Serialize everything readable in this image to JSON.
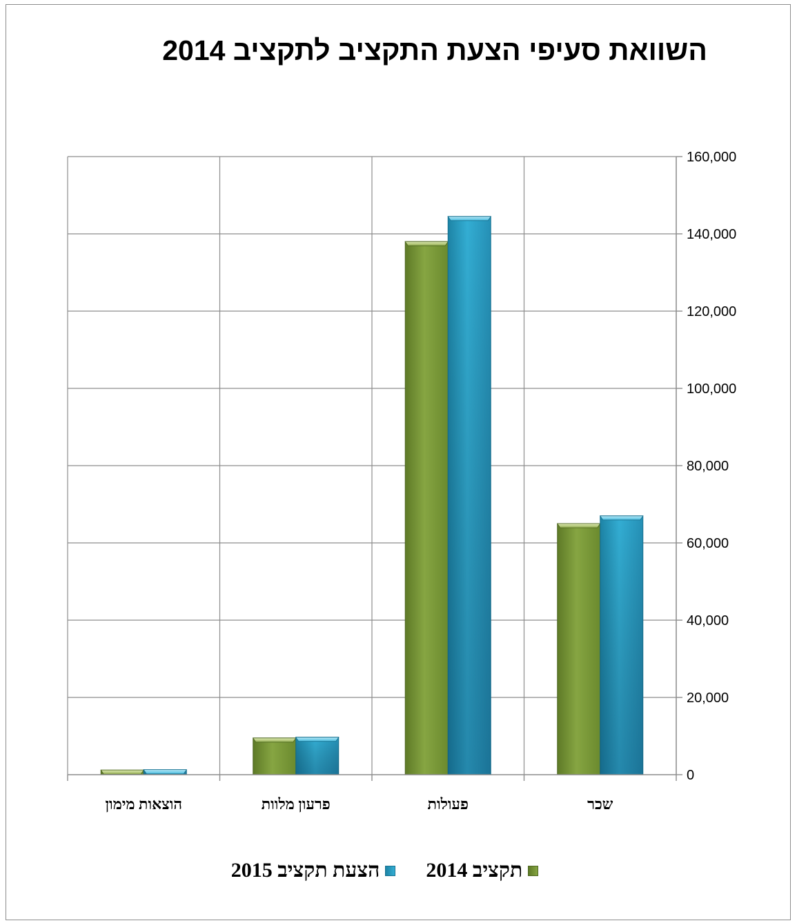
{
  "chart_data": {
    "type": "bar",
    "title": "השוואת סעיפי הצעת התקציב לתקציב 2014",
    "categories": [
      "שכר",
      "פעולות",
      "פרעון מלוות",
      "הוצאות מימון"
    ],
    "series": [
      {
        "name": "תקציב 2014",
        "values": [
          65000,
          138000,
          9500,
          1200
        ],
        "color": "#7a9a3a"
      },
      {
        "name": "הצעת תקציב 2015",
        "values": [
          67000,
          144500,
          9700,
          1300
        ],
        "color": "#2aa3c8"
      }
    ],
    "yticks": [
      "0",
      "20,000",
      "40,000",
      "60,000",
      "80,000",
      "100,000",
      "120,000",
      "140,000",
      "160,000"
    ],
    "ylim": [
      0,
      160000
    ],
    "ystep": 20000,
    "grid": true,
    "legend": "bottom",
    "direction": "rtl",
    "xlabel": "",
    "ylabel": ""
  }
}
